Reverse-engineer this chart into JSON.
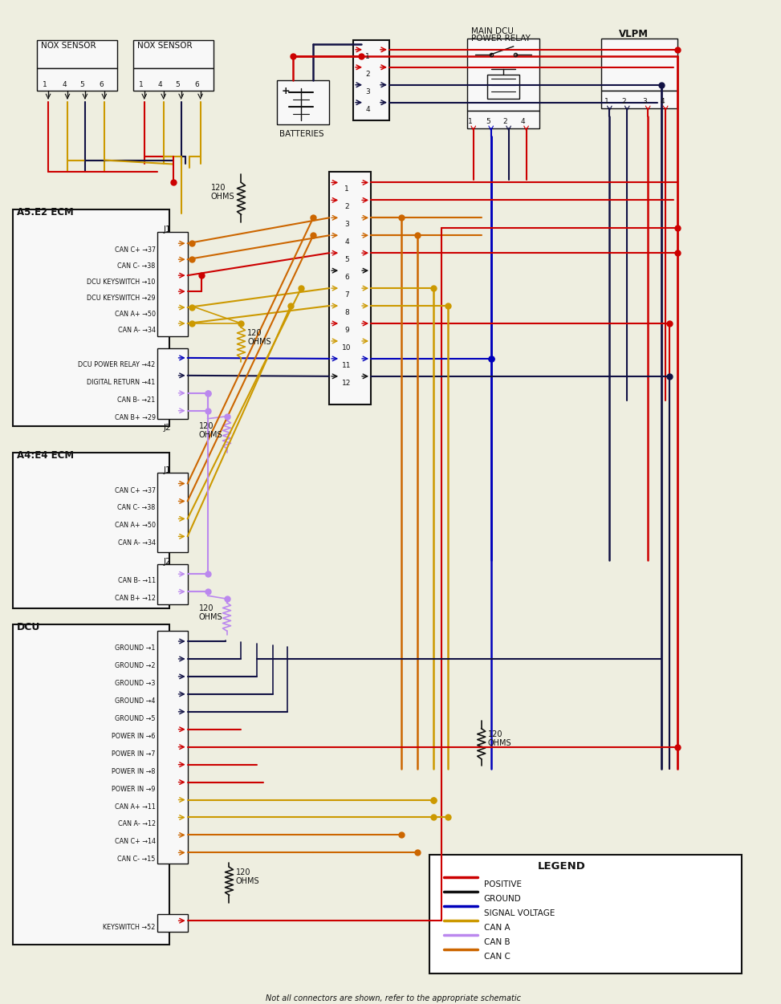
{
  "bg_color": "#eeeee0",
  "colors": {
    "red": "#cc0000",
    "black": "#111111",
    "blue": "#0000bb",
    "orange_can_c": "#cc6600",
    "gold_can_a": "#cc9900",
    "purple_can_b": "#bb88ee",
    "dark_navy": "#111144",
    "gray": "#888888"
  },
  "legend_items": [
    {
      "label": "POSITIVE",
      "color": "#cc0000"
    },
    {
      "label": "GROUND",
      "color": "#111111"
    },
    {
      "label": "SIGNAL VOLTAGE",
      "color": "#0000bb"
    },
    {
      "label": "CAN A",
      "color": "#cc9900"
    },
    {
      "label": "CAN B",
      "color": "#bb88ee"
    },
    {
      "label": "CAN C",
      "color": "#cc6600"
    }
  ],
  "footer": "Not all connectors are shown, refer to the appropriate schematic"
}
